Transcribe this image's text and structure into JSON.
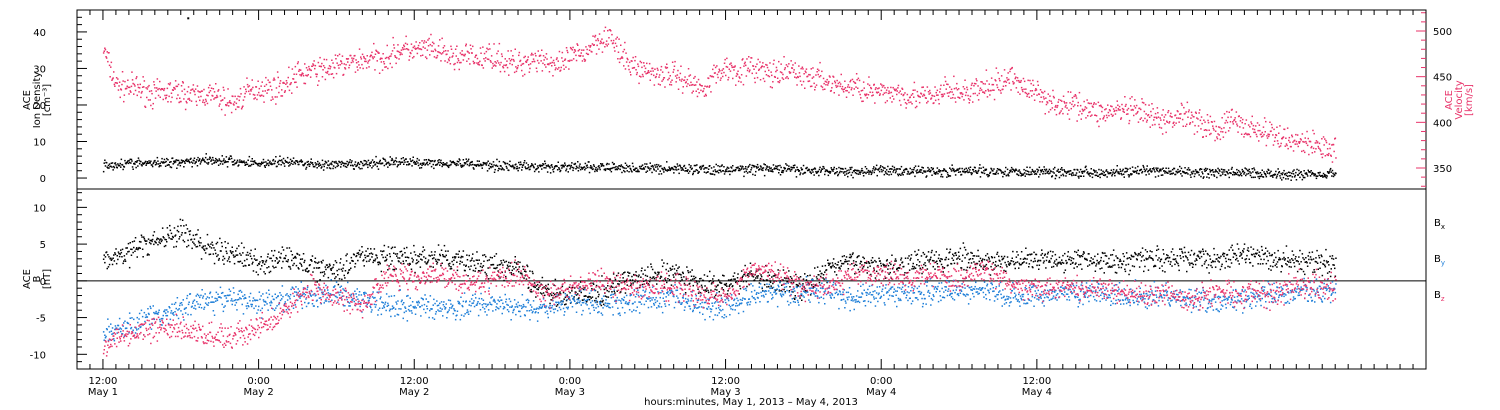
{
  "chart_data": [
    {
      "type": "scatter",
      "panel": "top",
      "left_axis": {
        "label_lines": [
          "ACE",
          "Ion Density",
          "[cm⁻³]"
        ],
        "ticks": [
          0,
          10,
          20,
          30,
          40
        ],
        "ylim": [
          -3,
          46
        ]
      },
      "right_axis": {
        "label_lines": [
          "ACE",
          "Velocity",
          "[km/s]"
        ],
        "ticks": [
          350,
          400,
          450,
          500
        ],
        "ylim": [
          327,
          523
        ],
        "color": "#e8336a"
      },
      "series": [
        {
          "axis": "right",
          "color": "#e8336a",
          "x": [
            0,
            1,
            2,
            3,
            4,
            5,
            6,
            7,
            8,
            9,
            10,
            11,
            12,
            13,
            14,
            15,
            16,
            17,
            18,
            19,
            20,
            21,
            22,
            23,
            24,
            25,
            26,
            27,
            28,
            29,
            30,
            31,
            32,
            33,
            34,
            35,
            36,
            37,
            38,
            39,
            40,
            41,
            42,
            43,
            44,
            45,
            46,
            47,
            48,
            49,
            50,
            51,
            52,
            53,
            54,
            55,
            56,
            57,
            58,
            59,
            60,
            61,
            62,
            63,
            64,
            65,
            66,
            67,
            68,
            69,
            70,
            71,
            72,
            73,
            74,
            75,
            76,
            77,
            78,
            79,
            80,
            81,
            82,
            83,
            84,
            85,
            86,
            87,
            88,
            89,
            90,
            91,
            92,
            93,
            94,
            95
          ],
          "values": [
            480,
            440,
            438,
            436,
            430,
            433,
            433,
            428,
            431,
            426,
            420,
            432,
            438,
            437,
            441,
            452,
            456,
            458,
            461,
            465,
            468,
            470,
            472,
            480,
            478,
            480,
            476,
            470,
            473,
            469,
            474,
            466,
            463,
            470,
            470,
            458,
            471,
            475,
            490,
            495,
            470,
            460,
            456,
            452,
            452,
            446,
            436,
            450,
            460,
            456,
            460,
            455,
            450,
            458,
            450,
            448,
            444,
            438,
            440,
            435,
            430,
            435,
            430,
            428,
            426,
            436,
            432,
            433,
            438,
            441,
            450,
            438,
            432,
            424,
            416,
            421,
            414,
            410,
            413,
            412,
            410,
            404,
            400,
            410,
            406,
            396,
            391,
            404,
            394,
            392,
            386,
            382,
            380,
            376,
            374,
            370
          ]
        },
        {
          "axis": "left",
          "color": "#000000",
          "x": [
            0,
            2,
            4,
            6,
            8,
            10,
            12,
            14,
            16,
            18,
            20,
            22,
            24,
            26,
            28,
            30,
            32,
            34,
            36,
            38,
            40,
            42,
            44,
            46,
            48,
            50,
            52,
            54,
            56,
            58,
            60,
            62,
            64,
            66,
            68,
            70,
            72,
            74,
            76,
            78,
            80,
            82,
            84,
            86,
            88,
            90,
            92,
            94,
            95
          ],
          "values": [
            3.5,
            4.0,
            4.0,
            4.5,
            5.0,
            4.5,
            4.0,
            4.5,
            3.8,
            3.5,
            3.6,
            4.5,
            4.2,
            4.2,
            4.0,
            3.5,
            3.2,
            3.0,
            3.0,
            2.8,
            2.8,
            2.6,
            2.6,
            2.4,
            2.2,
            2.5,
            2.5,
            2.0,
            2.0,
            1.8,
            2.0,
            2.0,
            1.8,
            1.8,
            1.9,
            1.8,
            1.8,
            1.6,
            1.6,
            1.6,
            1.8,
            1.8,
            1.5,
            1.4,
            1.5,
            1.2,
            1.0,
            1.2,
            1.5
          ]
        }
      ],
      "annotation": {
        "x": 6.5,
        "value": 44,
        "axis": "left"
      }
    },
    {
      "type": "scatter",
      "panel": "bottom",
      "left_axis": {
        "label_lines": [
          "ACE",
          "B",
          "[nT]"
        ],
        "ticks": [
          -10,
          -5,
          0,
          5,
          10
        ],
        "ylim": [
          -12,
          12.5
        ]
      },
      "zero_line": true,
      "series": [
        {
          "name": "Bx",
          "label": "B",
          "subscript": "x",
          "color": "#000000",
          "x": [
            0,
            2,
            4,
            6,
            8,
            10,
            12,
            14,
            16,
            18,
            20,
            22,
            24,
            26,
            28,
            30,
            32,
            34,
            36,
            38,
            40,
            42,
            44,
            46,
            48,
            50,
            52,
            54,
            56,
            58,
            60,
            62,
            64,
            66,
            68,
            70,
            72,
            74,
            76,
            78,
            80,
            82,
            84,
            86,
            88,
            90,
            92,
            94,
            95
          ],
          "values": [
            2.5,
            4.0,
            5.5,
            6.5,
            4.5,
            3.5,
            2.5,
            3.0,
            2.0,
            1.5,
            3.5,
            3.0,
            3.0,
            3.0,
            2.5,
            2.0,
            1.5,
            -1.5,
            -2.0,
            -2.0,
            0.0,
            0.5,
            1.0,
            -0.5,
            -0.5,
            0.5,
            0.0,
            -1.0,
            2.0,
            2.5,
            2.0,
            2.5,
            3.0,
            3.0,
            2.5,
            2.5,
            3.0,
            3.0,
            3.0,
            2.5,
            3.0,
            3.0,
            3.0,
            3.0,
            3.5,
            3.0,
            2.5,
            2.5,
            2.0
          ]
        },
        {
          "name": "By",
          "label": "B",
          "subscript": "y",
          "color": "#1f7fd8",
          "x": [
            0,
            2,
            4,
            6,
            8,
            10,
            12,
            14,
            16,
            18,
            20,
            22,
            24,
            26,
            28,
            30,
            32,
            34,
            36,
            38,
            40,
            42,
            44,
            46,
            48,
            50,
            52,
            54,
            56,
            58,
            60,
            62,
            64,
            66,
            68,
            70,
            72,
            74,
            76,
            78,
            80,
            82,
            84,
            86,
            88,
            90,
            92,
            94,
            95
          ],
          "values": [
            -7.0,
            -6.0,
            -5.0,
            -3.5,
            -2.5,
            -2.5,
            -3.0,
            -2.5,
            -2.0,
            -1.5,
            -2.5,
            -3.0,
            -3.5,
            -3.5,
            -3.5,
            -3.0,
            -3.5,
            -4.0,
            -3.0,
            -3.0,
            -3.0,
            -2.5,
            -2.0,
            -3.5,
            -3.5,
            -2.0,
            -1.5,
            -1.5,
            -1.5,
            -2.5,
            -1.5,
            -2.0,
            -1.5,
            -1.5,
            -1.5,
            -2.0,
            -2.0,
            -1.5,
            -1.5,
            -2.0,
            -2.0,
            -2.0,
            -2.5,
            -3.0,
            -2.5,
            -2.0,
            -1.5,
            -1.5,
            -1.0
          ]
        },
        {
          "name": "Bz",
          "label": "B",
          "subscript": "z",
          "color": "#e8336a",
          "x": [
            0,
            2,
            4,
            6,
            8,
            10,
            12,
            14,
            16,
            18,
            20,
            22,
            24,
            26,
            28,
            30,
            32,
            34,
            36,
            38,
            40,
            42,
            44,
            46,
            48,
            50,
            52,
            54,
            56,
            58,
            60,
            62,
            64,
            66,
            68,
            70,
            72,
            74,
            76,
            78,
            80,
            82,
            84,
            86,
            88,
            90,
            92,
            94,
            95
          ],
          "values": [
            -8.5,
            -7.5,
            -6.0,
            -6.5,
            -7.5,
            -7.5,
            -6.5,
            -4.0,
            -1.0,
            -2.0,
            -3.5,
            1.0,
            0.5,
            1.0,
            -0.5,
            0.0,
            1.0,
            -2.0,
            -1.0,
            0.0,
            -1.0,
            -1.0,
            -0.5,
            -2.0,
            -2.0,
            1.5,
            1.0,
            -1.0,
            -1.0,
            1.0,
            1.0,
            0.5,
            1.0,
            0.0,
            1.5,
            -0.5,
            -1.0,
            -1.0,
            -1.0,
            -1.5,
            -2.0,
            -2.0,
            -2.5,
            -1.5,
            -1.5,
            -2.0,
            -0.5,
            -0.5,
            -0.5
          ]
        }
      ]
    }
  ],
  "x_axis": {
    "range": [
      -2,
      102
    ],
    "ticks": [
      {
        "x": 0,
        "time": "12:00",
        "day": "May 1"
      },
      {
        "x": 12,
        "time": "0:00",
        "day": "May 2"
      },
      {
        "x": 24,
        "time": "12:00",
        "day": "May 2"
      },
      {
        "x": 36,
        "time": "0:00",
        "day": "May 3"
      },
      {
        "x": 48,
        "time": "12:00",
        "day": "May 3"
      },
      {
        "x": 60,
        "time": "0:00",
        "day": "May 4"
      },
      {
        "x": 72,
        "time": "12:00",
        "day": "May 4"
      }
    ],
    "title": "hours:minutes,  May  1, 2013 – May  4, 2013"
  }
}
